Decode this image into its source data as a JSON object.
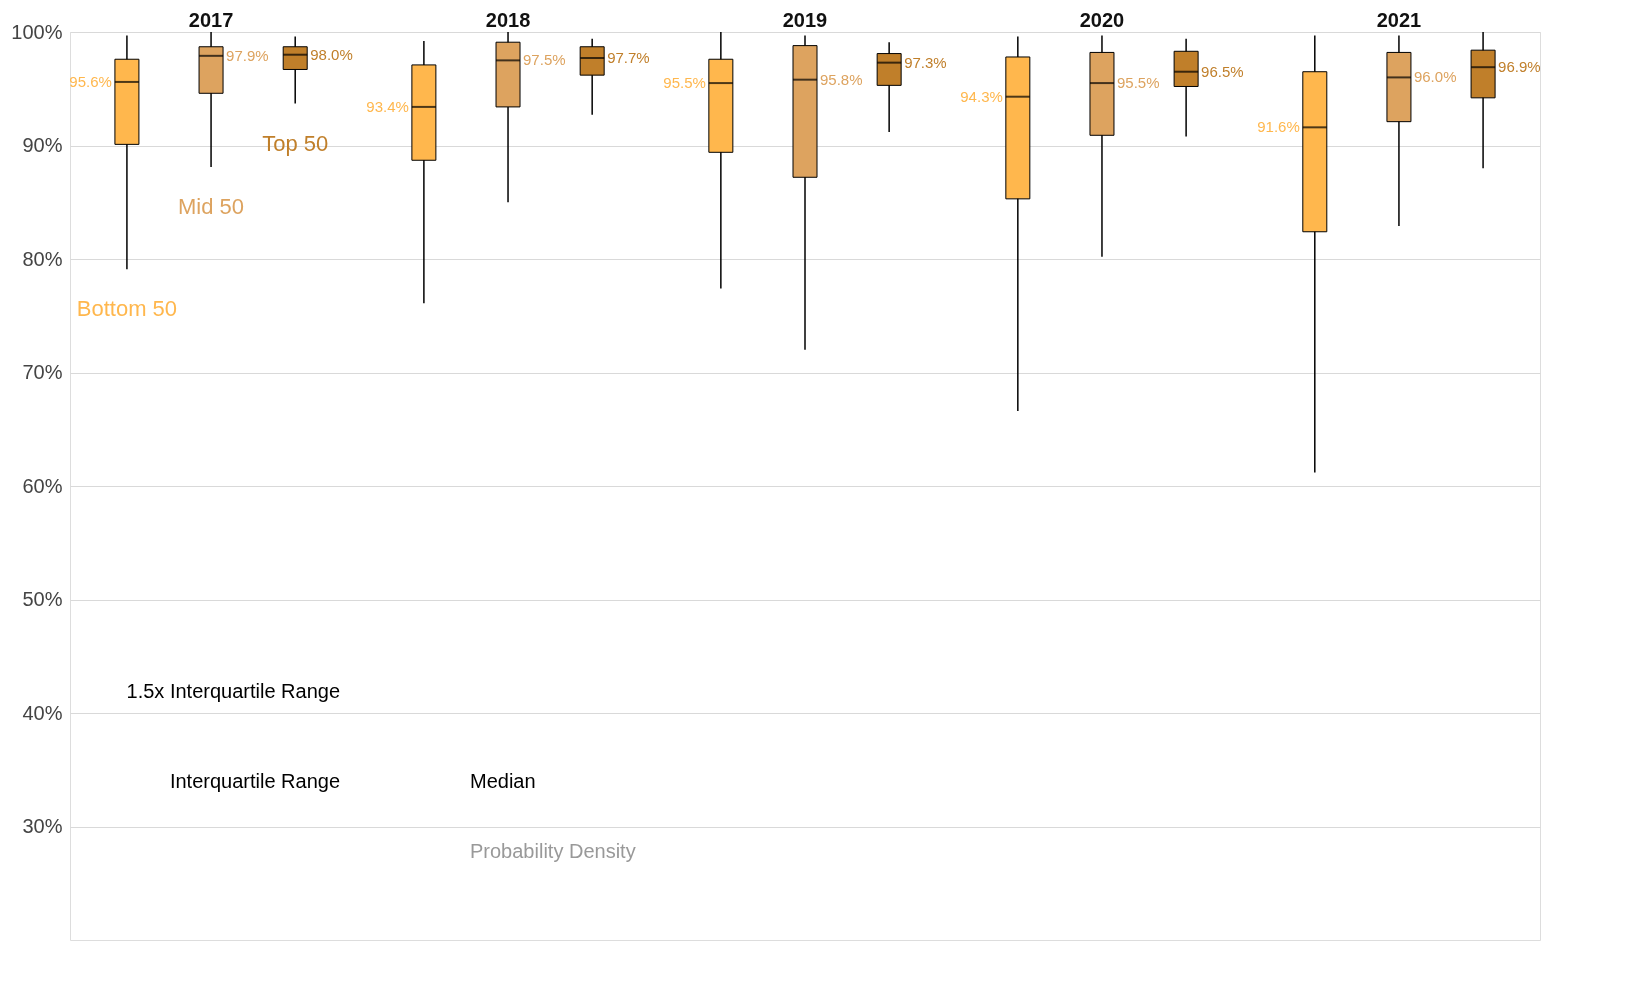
{
  "chart_data": {
    "type": "box",
    "categories": [
      "2017",
      "2018",
      "2019",
      "2020",
      "2021"
    ],
    "series": [
      {
        "name": "Bottom 50",
        "color": "#ffb74d",
        "value_labels": [
          "95.6%",
          "93.4%",
          "95.5%",
          "94.3%",
          "91.6%"
        ],
        "boxes": [
          {
            "low": 79.1,
            "q1": 90.1,
            "median": 95.6,
            "q3": 97.6,
            "high": 99.7
          },
          {
            "low": 76.1,
            "q1": 88.7,
            "median": 93.4,
            "q3": 97.1,
            "high": 99.2
          },
          {
            "low": 77.4,
            "q1": 89.4,
            "median": 95.5,
            "q3": 97.6,
            "high": 100
          },
          {
            "low": 66.6,
            "q1": 85.3,
            "median": 94.3,
            "q3": 97.8,
            "high": 99.6
          },
          {
            "low": 61.2,
            "q1": 82.4,
            "median": 91.6,
            "q3": 96.5,
            "high": 99.7
          }
        ]
      },
      {
        "name": "Mid 50",
        "color": "#dda35f",
        "value_labels": [
          "97.9%",
          "97.5%",
          "95.8%",
          "95.5%",
          "96.0%"
        ],
        "boxes": [
          {
            "low": 88.1,
            "q1": 94.6,
            "median": 97.9,
            "q3": 98.7,
            "high": 100
          },
          {
            "low": 85.0,
            "q1": 93.4,
            "median": 97.5,
            "q3": 99.1,
            "high": 100
          },
          {
            "low": 72.0,
            "q1": 87.2,
            "median": 95.8,
            "q3": 98.8,
            "high": 99.7
          },
          {
            "low": 80.2,
            "q1": 90.9,
            "median": 95.5,
            "q3": 98.2,
            "high": 99.7
          },
          {
            "low": 82.9,
            "q1": 92.1,
            "median": 96.0,
            "q3": 98.2,
            "high": 99.7
          }
        ]
      },
      {
        "name": "Top 50",
        "color": "#c07f2a",
        "value_labels": [
          "98.0%",
          "97.7%",
          "97.3%",
          "96.5%",
          "96.9%"
        ],
        "boxes": [
          {
            "low": 93.7,
            "q1": 96.7,
            "median": 98.0,
            "q3": 98.7,
            "high": 99.6
          },
          {
            "low": 92.7,
            "q1": 96.2,
            "median": 97.7,
            "q3": 98.7,
            "high": 99.4
          },
          {
            "low": 91.2,
            "q1": 95.3,
            "median": 97.3,
            "q3": 98.1,
            "high": 99.1
          },
          {
            "low": 90.8,
            "q1": 95.2,
            "median": 96.5,
            "q3": 98.3,
            "high": 99.4
          },
          {
            "low": 88.0,
            "q1": 94.2,
            "median": 96.9,
            "q3": 98.4,
            "high": 100
          }
        ]
      }
    ],
    "ylim": [
      20,
      100
    ],
    "yticks": [
      {
        "value": 30,
        "label": "30%"
      },
      {
        "value": 40,
        "label": "40%"
      },
      {
        "value": 50,
        "label": "50%"
      },
      {
        "value": 60,
        "label": "60%"
      },
      {
        "value": 70,
        "label": "70%"
      },
      {
        "value": 80,
        "label": "80%"
      },
      {
        "value": 90,
        "label": "90%"
      },
      {
        "value": 100,
        "label": "100%"
      }
    ],
    "grid": "y",
    "annotations": [
      "1.5x Interquartile Range",
      "Interquartile Range",
      "Median",
      "Probability Density"
    ]
  }
}
